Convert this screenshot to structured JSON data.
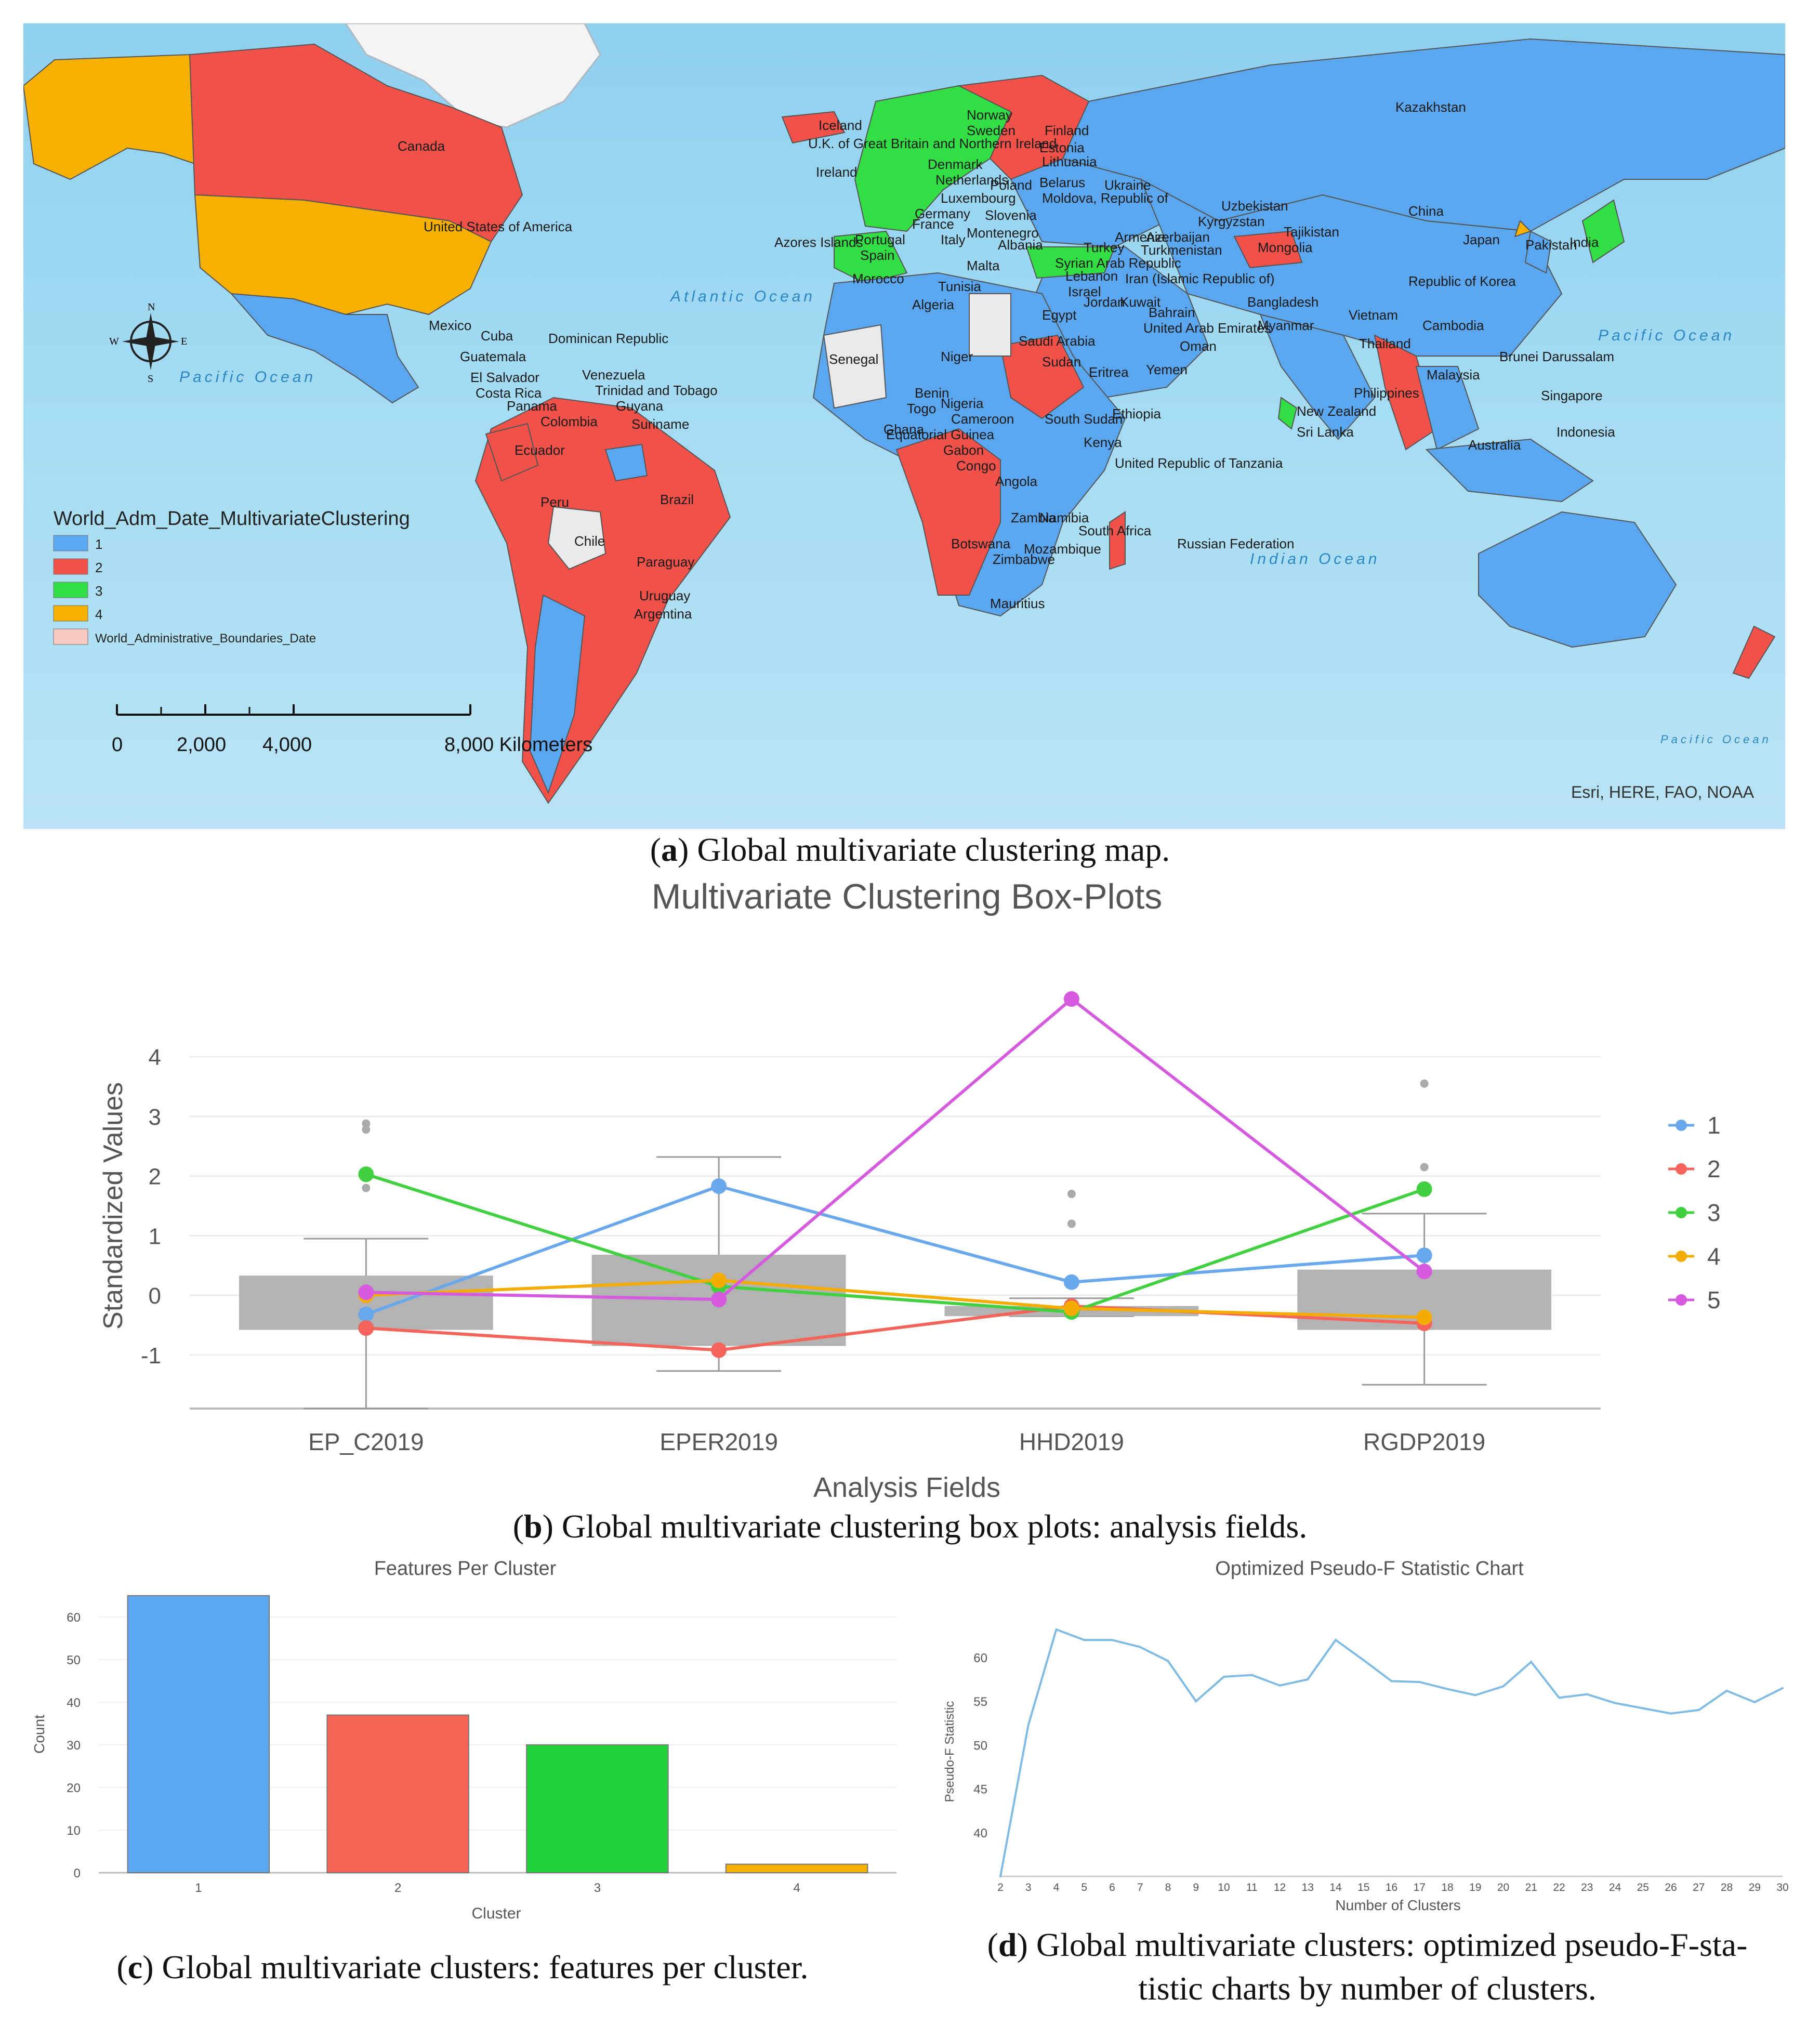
{
  "map": {
    "legend_title": "World_Adm_Date_MultivariateClustering",
    "legend_items": [
      {
        "label": "1",
        "color": "#5aa7f0"
      },
      {
        "label": "2",
        "color": "#f0524a"
      },
      {
        "label": "3",
        "color": "#33dd44"
      },
      {
        "label": "4",
        "color": "#f5b000"
      },
      {
        "label": "World_Administrative_Boundaries_Date",
        "color": "#f7c9c0"
      }
    ],
    "scale_ticks": [
      "0",
      "2,000",
      "4,000",
      "8,000 Kilometers"
    ],
    "attribution": "Esri, HERE, FAO, NOAA",
    "oceans": [
      "Atlantic Ocean",
      "Pacific Ocean",
      "Pacific Ocean",
      "Indian Ocean",
      "Pacific Ocean"
    ],
    "compass": [
      "N",
      "S",
      "E",
      "W"
    ],
    "country_labels": [
      "Canada",
      "United States of America",
      "Mexico",
      "Cuba",
      "Dominican Republic",
      "Guatemala",
      "El Salvador",
      "Costa Rica",
      "Panama",
      "Venezuela",
      "Trinidad and Tobago",
      "Guyana",
      "Suriname",
      "Colombia",
      "Ecuador",
      "Peru",
      "Brazil",
      "Chile",
      "Paraguay",
      "Uruguay",
      "Argentina",
      "Azores Islands",
      "Iceland",
      "U.K. of Great Britain and Northern Ireland",
      "Ireland",
      "Norway",
      "Sweden",
      "Finland",
      "Estonia",
      "Lithuania",
      "Denmark",
      "Netherlands",
      "Poland",
      "Belarus",
      "Ukraine",
      "Luxembourg",
      "Moldova, Republic of",
      "Germany",
      "Slovenia",
      "France",
      "Montenegro",
      "Portugal",
      "Spain",
      "Italy",
      "Albania",
      "Malta",
      "Turkey",
      "Armenia",
      "Azerbaijan",
      "Turkmenistan",
      "Syrian Arab Republic",
      "Lebanon",
      "Israel",
      "Jordan",
      "Iran (Islamic Republic of)",
      "Kuwait",
      "Bahrain",
      "United Arab Emirates",
      "Oman",
      "Yemen",
      "Saudi Arabia",
      "Egypt",
      "Sudan",
      "Eritrea",
      "Ethiopia",
      "Morocco",
      "Tunisia",
      "Algeria",
      "Senegal",
      "Niger",
      "Benin",
      "Togo",
      "Nigeria",
      "Ghana",
      "Cameroon",
      "Equatorial Guinea",
      "Gabon",
      "Congo",
      "South Sudan",
      "Kenya",
      "United Republic of Tanzania",
      "Angola",
      "Zambia",
      "Namibia",
      "Botswana",
      "Zimbabwe",
      "Mozambique",
      "South Africa",
      "Mauritius",
      "Russian Federation",
      "Kazakhstan",
      "Uzbekistan",
      "Kyrgyzstan",
      "Tajikistan",
      "Mongolia",
      "China",
      "Republic of Korea",
      "Japan",
      "Pakistan",
      "India",
      "Bangladesh",
      "Myanmar",
      "Vietnam",
      "Thailand",
      "Cambodia",
      "Philippines",
      "Malaysia",
      "Brunei Darussalam",
      "Singapore",
      "Indonesia",
      "Sri Lanka",
      "Australia",
      "New Zealand"
    ]
  },
  "captions": {
    "a": {
      "letter": "a",
      "text": " Global multivariate clustering map."
    },
    "b": {
      "letter": "b",
      "text": " Global multivariate clustering box plots: analysis fields."
    },
    "c": {
      "letter": "c",
      "text": " Global multivariate clusters: features per cluster."
    },
    "d": {
      "letter": "d",
      "text": " Global multivariate clusters: optimized pseudo-F-sta-",
      "text2": "tistic charts by number of clusters."
    }
  },
  "chart_data": [
    {
      "type": "box",
      "title": "Multivariate Clustering Box-Plots",
      "xlabel": "Analysis Fields",
      "ylabel": "Standardized Values",
      "categories": [
        "EP_C2019",
        "EPER2019",
        "HHD2019",
        "RGDP2019"
      ],
      "ylim": [
        -1.9,
        4.9
      ],
      "yticks": [
        -1,
        0,
        1,
        2,
        3,
        4
      ],
      "boxes": [
        {
          "q1": -0.58,
          "q3": 0.33,
          "whisker_low": -1.9,
          "whisker_high": 0.95,
          "outliers": [
            1.8,
            2.78,
            2.88
          ]
        },
        {
          "q1": -0.85,
          "q3": 0.68,
          "whisker_low": -1.27,
          "whisker_high": 2.32,
          "outliers": []
        },
        {
          "q1": -0.35,
          "q3": -0.18,
          "whisker_low": -0.35,
          "whisker_high": -0.05,
          "outliers": [
            1.2,
            1.7
          ]
        },
        {
          "q1": -0.58,
          "q3": 0.43,
          "whisker_low": -1.5,
          "whisker_high": 1.37,
          "outliers": [
            2.15,
            3.55
          ]
        }
      ],
      "series": [
        {
          "name": "1",
          "color": "#6aa8ee",
          "values": [
            -0.32,
            1.83,
            0.22,
            0.67
          ]
        },
        {
          "name": "2",
          "color": "#f4645a",
          "values": [
            -0.55,
            -0.92,
            -0.18,
            -0.47
          ]
        },
        {
          "name": "3",
          "color": "#40d040",
          "values": [
            2.03,
            0.15,
            -0.28,
            1.78
          ]
        },
        {
          "name": "4",
          "color": "#f5ac00",
          "values": [
            0.0,
            0.25,
            -0.22,
            -0.37
          ]
        },
        {
          "name": "5",
          "color": "#d65ae0",
          "values": [
            0.05,
            -0.07,
            4.97,
            0.4
          ]
        }
      ],
      "legend_position": "right"
    },
    {
      "type": "bar",
      "title": "Features Per Cluster",
      "xlabel": "Cluster",
      "ylabel": "Count",
      "categories": [
        "1",
        "2",
        "3",
        "4"
      ],
      "values": [
        65,
        37,
        30,
        2
      ],
      "colors": [
        "#5aa7f0",
        "#f56452",
        "#22d23a",
        "#f5b000"
      ],
      "ylim": [
        0,
        65
      ],
      "yticks": [
        0,
        10,
        20,
        30,
        40,
        50,
        60
      ]
    },
    {
      "type": "line",
      "title": "Optimized Pseudo-F Statistic Chart",
      "xlabel": "Number of Clusters",
      "ylabel": "Pseudo-F Statistic",
      "x": [
        2,
        3,
        4,
        5,
        6,
        7,
        8,
        9,
        10,
        11,
        12,
        13,
        14,
        15,
        16,
        17,
        18,
        19,
        20,
        21,
        22,
        23,
        24,
        25,
        26,
        27,
        28,
        29,
        30
      ],
      "values": [
        35.0,
        52.3,
        63.2,
        62.0,
        62.0,
        61.2,
        59.6,
        55.0,
        57.8,
        58.0,
        56.8,
        57.5,
        62.0,
        59.7,
        57.3,
        57.2,
        56.4,
        55.7,
        56.7,
        59.5,
        55.4,
        55.8,
        54.8,
        54.2,
        53.6,
        54.0,
        56.2,
        54.9,
        56.5
      ],
      "color": "#7fbbe3",
      "ylim": [
        35,
        63.5
      ],
      "yticks": [
        40,
        45,
        50,
        55,
        60
      ]
    }
  ]
}
